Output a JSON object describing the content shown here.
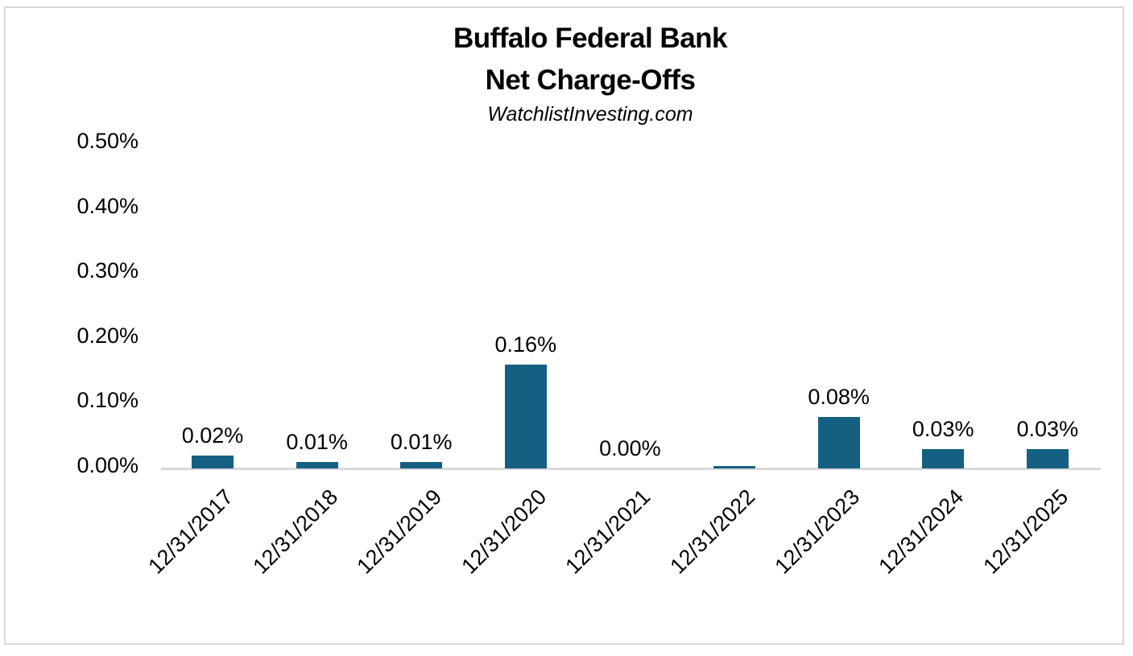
{
  "chart_data": {
    "type": "bar",
    "title": "Buffalo Federal Bank Net Charge-Offs",
    "title_line1": "Buffalo Federal Bank",
    "title_line2": "Net Charge-Offs",
    "subtitle": "WatchlistInvesting.com",
    "categories": [
      "12/31/2017",
      "12/31/2018",
      "12/31/2019",
      "12/31/2020",
      "12/31/2021",
      "12/31/2022",
      "12/31/2023",
      "12/31/2024",
      "12/31/2025"
    ],
    "values": [
      0.02,
      0.01,
      0.01,
      0.16,
      0.0,
      0.004,
      0.08,
      0.03,
      0.03
    ],
    "unit": "%",
    "data_labels": [
      "0.02%",
      "0.01%",
      "0.01%",
      "0.16%",
      "0.00%",
      "",
      "0.08%",
      "0.03%",
      "0.03%"
    ],
    "y_ticks": [
      {
        "label": "0.00%",
        "value": 0.0
      },
      {
        "label": "0.10%",
        "value": 0.1
      },
      {
        "label": "0.20%",
        "value": 0.2
      },
      {
        "label": "0.30%",
        "value": 0.3
      },
      {
        "label": "0.40%",
        "value": 0.4
      },
      {
        "label": "0.50%",
        "value": 0.5
      }
    ],
    "ylim": [
      0,
      0.5
    ],
    "xlabel": "",
    "ylabel": "",
    "grid": false,
    "legend": false,
    "bar_color": "#156082",
    "axis_color": "#D9D9D9",
    "text_color": "#000000"
  }
}
